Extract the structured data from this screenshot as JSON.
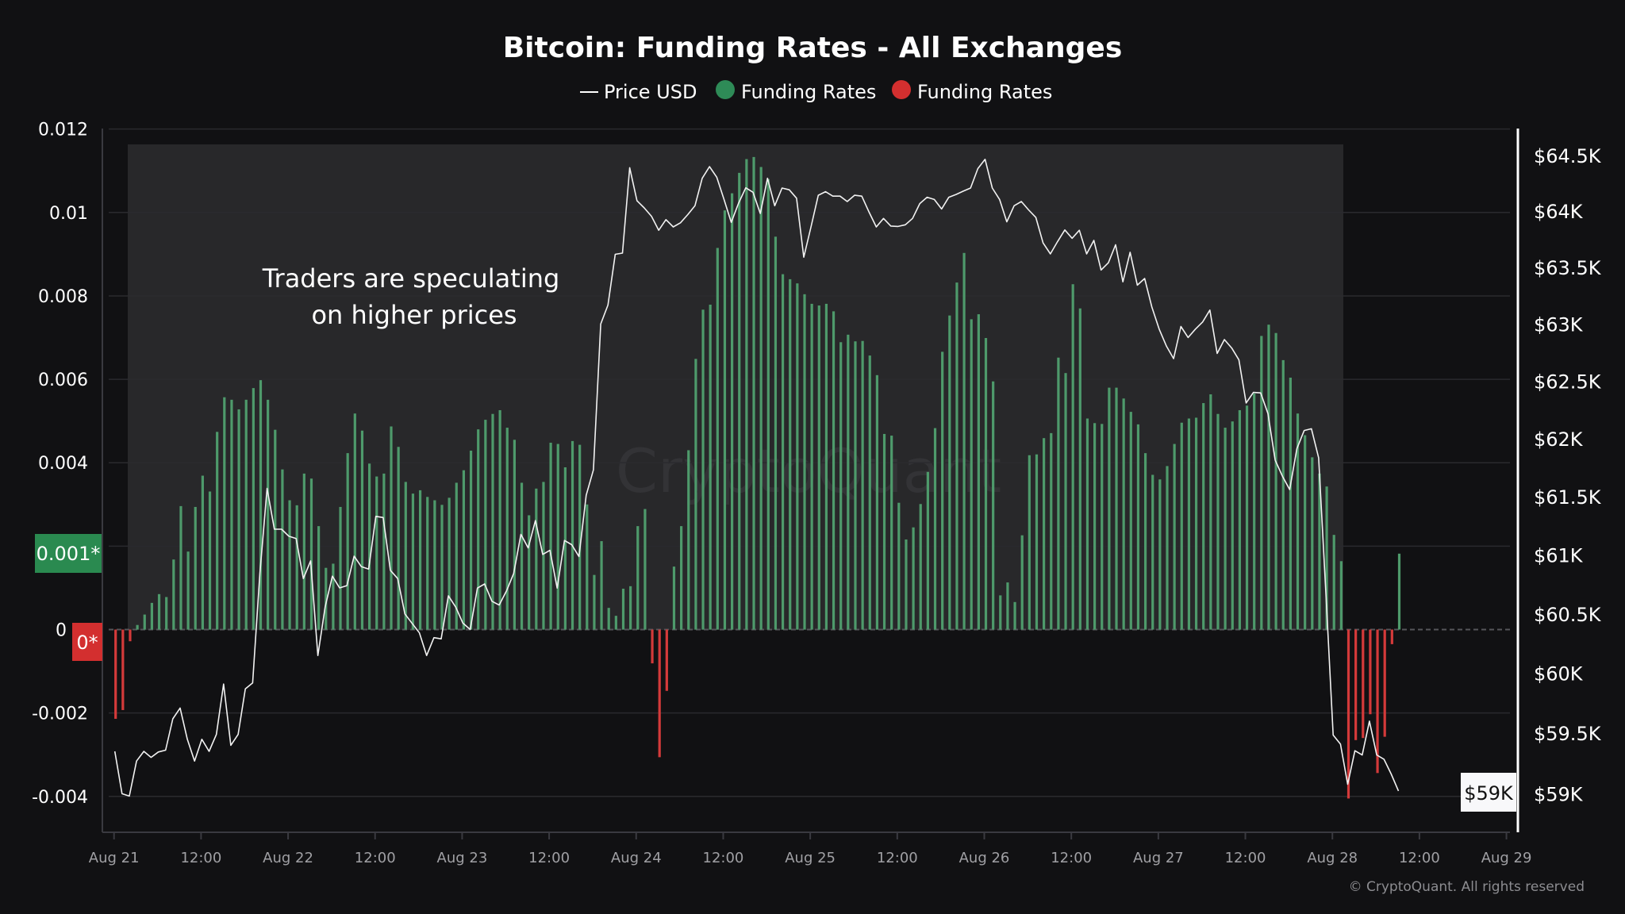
{
  "chart_data": {
    "type": "bar+line",
    "title": "Bitcoin: Funding Rates - All Exchanges",
    "legend": [
      {
        "label": "Price USD",
        "type": "line",
        "color": "#ffffff"
      },
      {
        "label": "Funding Rates",
        "type": "dot",
        "color": "#2e8b57"
      },
      {
        "label": "Funding Rates",
        "type": "dot",
        "color": "#d32f2f"
      }
    ],
    "legend_placement": "top-center",
    "colors": {
      "positive": "#4e9a6b",
      "negative": "#d43a3a",
      "price": "#f2f2f2",
      "background": "#111113",
      "annotation_region": "#28282a"
    },
    "left_axis": {
      "ticks": [
        "0.012",
        "0.01",
        "0.008",
        "0.006",
        "0.004",
        "0",
        "-0.002",
        "-0.004"
      ],
      "tick_values": [
        0.012,
        0.01,
        0.008,
        0.006,
        0.004,
        0,
        -0.002,
        -0.004
      ],
      "range": [
        -0.0045,
        0.0121
      ]
    },
    "right_axis": {
      "scale": "log",
      "ticks": [
        "$64.5K",
        "$64K",
        "$63.5K",
        "$63K",
        "$62.5K",
        "$62K",
        "$61.5K",
        "$61K",
        "$60.5K",
        "$60K",
        "$59.5K",
        "$59K"
      ],
      "tick_values": [
        64500,
        64000,
        63500,
        63000,
        62500,
        62000,
        61500,
        61000,
        60500,
        60000,
        59500,
        59000
      ]
    },
    "x_axis": {
      "ticks": [
        "Aug 21",
        "12:00",
        "Aug 22",
        "12:00",
        "Aug 23",
        "12:00",
        "Aug 24",
        "12:00",
        "Aug 25",
        "12:00",
        "Aug 26",
        "12:00",
        "Aug 27",
        "12:00",
        "Aug 28",
        "12:00",
        "Aug 29"
      ]
    },
    "grid": true,
    "markers": {
      "funding_positive": "0.001*",
      "funding_zero": "0*",
      "price_current": "$59K"
    },
    "annotation": {
      "line1": "Traders are speculating",
      "line2": "on higher prices"
    },
    "watermark": "CryptoQuant",
    "copyright": "© CryptoQuant. All rights reserved",
    "x": [
      "Aug 21 00:00",
      "Aug 21 01:00",
      "Aug 21 02:00",
      "Aug 21 03:00",
      "Aug 21 04:00",
      "Aug 21 05:00",
      "Aug 21 06:00",
      "Aug 21 07:00",
      "Aug 21 08:00",
      "Aug 21 09:00",
      "Aug 21 10:00",
      "Aug 21 11:00",
      "Aug 21 12:00",
      "Aug 21 13:00",
      "Aug 21 14:00",
      "Aug 21 15:00",
      "Aug 21 16:00",
      "Aug 21 17:00",
      "Aug 21 18:00",
      "Aug 21 19:00",
      "Aug 21 20:00",
      "Aug 21 21:00",
      "Aug 21 22:00",
      "Aug 21 23:00",
      "Aug 22 00:00",
      "Aug 22 01:00",
      "Aug 22 02:00",
      "Aug 22 03:00",
      "Aug 22 04:00",
      "Aug 22 05:00",
      "Aug 22 06:00",
      "Aug 22 07:00",
      "Aug 22 08:00",
      "Aug 22 09:00",
      "Aug 22 10:00",
      "Aug 22 11:00",
      "Aug 22 12:00",
      "Aug 22 13:00",
      "Aug 22 14:00",
      "Aug 22 15:00",
      "Aug 22 16:00",
      "Aug 22 17:00",
      "Aug 22 18:00",
      "Aug 22 19:00",
      "Aug 22 20:00",
      "Aug 22 21:00",
      "Aug 22 22:00",
      "Aug 22 23:00",
      "Aug 23 00:00",
      "Aug 23 01:00",
      "Aug 23 02:00",
      "Aug 23 03:00",
      "Aug 23 04:00",
      "Aug 23 05:00",
      "Aug 23 06:00",
      "Aug 23 07:00",
      "Aug 23 08:00",
      "Aug 23 09:00",
      "Aug 23 10:00",
      "Aug 23 11:00",
      "Aug 23 12:00",
      "Aug 23 13:00",
      "Aug 23 14:00",
      "Aug 23 15:00",
      "Aug 23 16:00",
      "Aug 23 17:00",
      "Aug 23 18:00",
      "Aug 23 19:00",
      "Aug 23 20:00",
      "Aug 23 21:00",
      "Aug 23 22:00",
      "Aug 23 23:00",
      "Aug 24 00:00",
      "Aug 24 01:00",
      "Aug 24 02:00",
      "Aug 24 03:00",
      "Aug 24 04:00",
      "Aug 24 05:00",
      "Aug 24 06:00",
      "Aug 24 07:00",
      "Aug 24 08:00",
      "Aug 24 09:00",
      "Aug 24 10:00",
      "Aug 24 11:00",
      "Aug 24 12:00",
      "Aug 24 13:00",
      "Aug 24 14:00",
      "Aug 24 15:00",
      "Aug 24 16:00",
      "Aug 24 17:00",
      "Aug 24 18:00",
      "Aug 24 19:00",
      "Aug 24 20:00",
      "Aug 24 21:00",
      "Aug 24 22:00",
      "Aug 24 23:00",
      "Aug 25 00:00",
      "Aug 25 01:00",
      "Aug 25 02:00",
      "Aug 25 03:00",
      "Aug 25 04:00",
      "Aug 25 05:00",
      "Aug 25 06:00",
      "Aug 25 07:00",
      "Aug 25 08:00",
      "Aug 25 09:00",
      "Aug 25 10:00",
      "Aug 25 11:00",
      "Aug 25 12:00",
      "Aug 25 13:00",
      "Aug 25 14:00",
      "Aug 25 15:00",
      "Aug 25 16:00",
      "Aug 25 17:00",
      "Aug 25 18:00",
      "Aug 25 19:00",
      "Aug 25 20:00",
      "Aug 25 21:00",
      "Aug 25 22:00",
      "Aug 25 23:00",
      "Aug 26 00:00",
      "Aug 26 01:00",
      "Aug 26 02:00",
      "Aug 26 03:00",
      "Aug 26 04:00",
      "Aug 26 05:00",
      "Aug 26 06:00",
      "Aug 26 07:00",
      "Aug 26 08:00",
      "Aug 26 09:00",
      "Aug 26 10:00",
      "Aug 26 11:00",
      "Aug 26 12:00",
      "Aug 26 13:00",
      "Aug 26 14:00",
      "Aug 26 15:00",
      "Aug 26 16:00",
      "Aug 26 17:00",
      "Aug 26 18:00",
      "Aug 26 19:00",
      "Aug 26 20:00",
      "Aug 26 21:00",
      "Aug 26 22:00",
      "Aug 26 23:00",
      "Aug 27 00:00",
      "Aug 27 01:00",
      "Aug 27 02:00",
      "Aug 27 03:00",
      "Aug 27 04:00",
      "Aug 27 05:00",
      "Aug 27 06:00",
      "Aug 27 07:00",
      "Aug 27 08:00",
      "Aug 27 09:00",
      "Aug 27 10:00",
      "Aug 27 11:00",
      "Aug 27 12:00",
      "Aug 27 13:00",
      "Aug 27 14:00",
      "Aug 27 15:00",
      "Aug 27 16:00",
      "Aug 27 17:00",
      "Aug 27 18:00",
      "Aug 27 19:00",
      "Aug 27 20:00",
      "Aug 27 21:00",
      "Aug 27 22:00",
      "Aug 27 23:00",
      "Aug 28 00:00",
      "Aug 28 01:00",
      "Aug 28 02:00",
      "Aug 28 03:00",
      "Aug 28 04:00",
      "Aug 28 05:00",
      "Aug 28 06:00",
      "Aug 28 07:00",
      "Aug 28 08:00",
      "Aug 28 09:00"
    ],
    "series": [
      {
        "name": "Funding Rates",
        "type": "bar",
        "values": [
          -0.00214,
          -0.00193,
          -0.00028,
          0.00011,
          0.00036,
          0.00064,
          0.00085,
          0.00078,
          0.00168,
          0.00296,
          0.00187,
          0.00294,
          0.00369,
          0.00331,
          0.00474,
          0.00557,
          0.00551,
          0.00528,
          0.00551,
          0.00579,
          0.00598,
          0.00551,
          0.00479,
          0.00384,
          0.0031,
          0.00298,
          0.00374,
          0.00362,
          0.00248,
          0.00148,
          0.00158,
          0.00294,
          0.00423,
          0.00518,
          0.00477,
          0.00398,
          0.00367,
          0.00374,
          0.00487,
          0.00438,
          0.00354,
          0.00326,
          0.00334,
          0.00318,
          0.0031,
          0.00299,
          0.00316,
          0.00352,
          0.00382,
          0.00429,
          0.0048,
          0.00503,
          0.00517,
          0.00526,
          0.00484,
          0.00455,
          0.00352,
          0.00274,
          0.00338,
          0.00354,
          0.00448,
          0.00445,
          0.00389,
          0.00452,
          0.00443,
          0.003,
          0.00131,
          0.00212,
          0.00052,
          0.00033,
          0.00098,
          0.00104,
          0.00248,
          0.00289,
          -0.00081,
          -0.00306,
          -0.00147,
          0.00151,
          0.00248,
          0.0043,
          0.00649,
          0.00767,
          0.00779,
          0.00915,
          0.01005,
          0.01046,
          0.01095,
          0.01128,
          0.01133,
          0.01109,
          0.0108,
          0.00942,
          0.00852,
          0.0084,
          0.0083,
          0.00804,
          0.00781,
          0.00777,
          0.00781,
          0.00763,
          0.00689,
          0.00707,
          0.00691,
          0.00692,
          0.00657,
          0.0061,
          0.00469,
          0.00465,
          0.00304,
          0.00216,
          0.00245,
          0.00301,
          0.00378,
          0.00483,
          0.00666,
          0.00753,
          0.00832,
          0.00903,
          0.00744,
          0.00756,
          0.00699,
          0.00595,
          0.00082,
          0.00113,
          0.00066,
          0.00226,
          0.00418,
          0.0042,
          0.00459,
          0.00471,
          0.00652,
          0.00615,
          0.00828,
          0.0077,
          0.00506,
          0.00495,
          0.00493,
          0.0058,
          0.0058,
          0.00554,
          0.00522,
          0.00492,
          0.00423,
          0.00371,
          0.0036,
          0.00392,
          0.00445,
          0.00496,
          0.00506,
          0.00508,
          0.00543,
          0.00564,
          0.00517,
          0.00484,
          0.00499,
          0.00526,
          0.00537,
          0.00566,
          0.00704,
          0.00731,
          0.00711,
          0.00646,
          0.00604,
          0.00518,
          0.00466,
          0.00413,
          0.00374,
          0.00343,
          0.00227,
          0.00164,
          -0.00405,
          -0.00265,
          -0.0026,
          -0.00203,
          -0.00344,
          -0.00257,
          -0.00035,
          0.00182
        ]
      },
      {
        "name": "Price USD",
        "type": "line",
        "values": [
          59350,
          59000,
          58980,
          59270,
          59350,
          59300,
          59345,
          59360,
          59620,
          59710,
          59450,
          59270,
          59450,
          59350,
          59490,
          59910,
          59400,
          59490,
          59870,
          59920,
          60840,
          61570,
          61220,
          61220,
          61160,
          61140,
          60800,
          60950,
          60150,
          60560,
          60820,
          60720,
          60740,
          60990,
          60900,
          60880,
          61330,
          61320,
          60870,
          60800,
          60500,
          60420,
          60340,
          60150,
          60300,
          60290,
          60654,
          60558,
          60422,
          60369,
          60719,
          60754,
          60607,
          60575,
          60694,
          60843,
          61176,
          61060,
          61294,
          61005,
          61040,
          60719,
          61124,
          61088,
          60987,
          61512,
          61730,
          63000,
          63167,
          63616,
          63627,
          64390,
          64094,
          64030,
          63955,
          63830,
          63925,
          63860,
          63897,
          63970,
          64050,
          64295,
          64400,
          64305,
          64105,
          63900,
          64070,
          64210,
          64170,
          63980,
          64295,
          64049,
          64208,
          64192,
          64117,
          63590,
          63860,
          64143,
          64175,
          64135,
          64135,
          64087,
          64143,
          64135,
          63992,
          63860,
          63936,
          63868,
          63864,
          63879,
          63936,
          64068,
          64125,
          64105,
          64020,
          64125,
          64150,
          64180,
          64208,
          64382,
          64466,
          64208,
          64105,
          63905,
          64049,
          64087,
          64012,
          63944,
          63717,
          63620,
          63730,
          63833,
          63758,
          63830,
          63620,
          63740,
          63477,
          63541,
          63701,
          63372,
          63634,
          63343,
          63402,
          63149,
          62955,
          62807,
          62696,
          62978,
          62881,
          62955,
          63018,
          63123,
          62741,
          62863,
          62789,
          62685,
          62309,
          62401,
          62397,
          62217,
          61814,
          61676,
          61560,
          61913,
          62070,
          62085,
          61833,
          60666,
          59485,
          59410,
          59078,
          59355,
          59320,
          59601,
          59320,
          59285,
          59163,
          59023
        ]
      }
    ]
  }
}
